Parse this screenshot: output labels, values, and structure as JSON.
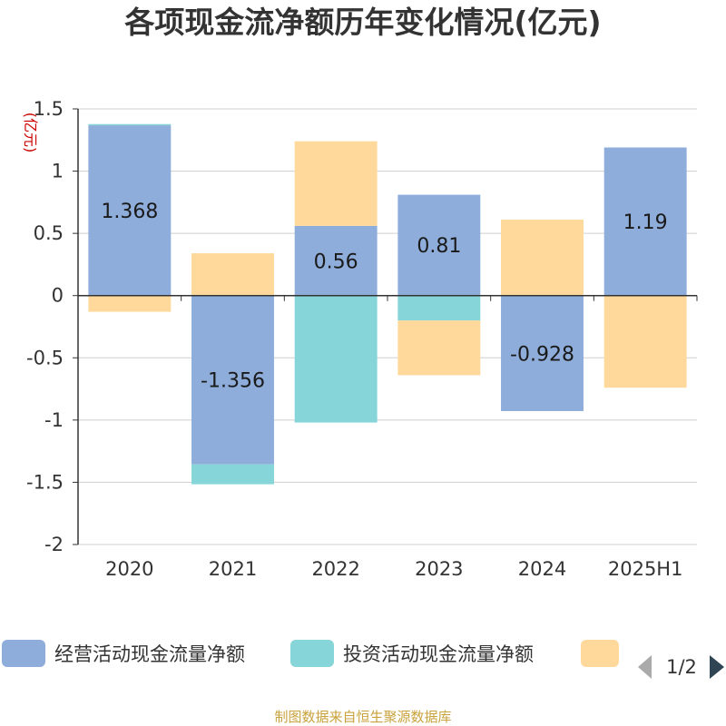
{
  "chart_data": {
    "type": "bar",
    "stacked": true,
    "title": "各项现金流净额历年变化情况(亿元)",
    "ylabel": "(亿元)",
    "ylim": [
      -2,
      1.5
    ],
    "yticks": [
      1.5,
      1,
      0.5,
      0,
      -0.5,
      -1,
      -1.5,
      -2
    ],
    "ytick_labels": [
      "1.5",
      "1",
      "0.5",
      "0",
      "-0.5",
      "-1",
      "-1.5",
      "-2"
    ],
    "categories": [
      "2020",
      "2021",
      "2022",
      "2023",
      "2024",
      "2025H1"
    ],
    "series": [
      {
        "name": "经营活动现金流量净额",
        "color": "#8eadda",
        "values": [
          1.368,
          -1.356,
          0.56,
          0.81,
          -0.928,
          1.19
        ],
        "labels": [
          "1.368",
          "-1.356",
          "0.56",
          "0.81",
          "-0.928",
          "1.19"
        ]
      },
      {
        "name": "投资活动现金流量净额",
        "color": "#86d5d8",
        "values": [
          0.01,
          -0.16,
          -1.02,
          -0.2,
          0,
          0
        ]
      },
      {
        "name": "",
        "color": "#ffd99b",
        "values": [
          -0.13,
          0.34,
          0.68,
          -0.44,
          0.61,
          -0.74
        ]
      }
    ],
    "legend": {
      "position": "bottom",
      "page": "1/2"
    },
    "grid": true
  },
  "source": "制图数据来自恒生聚源数据库"
}
